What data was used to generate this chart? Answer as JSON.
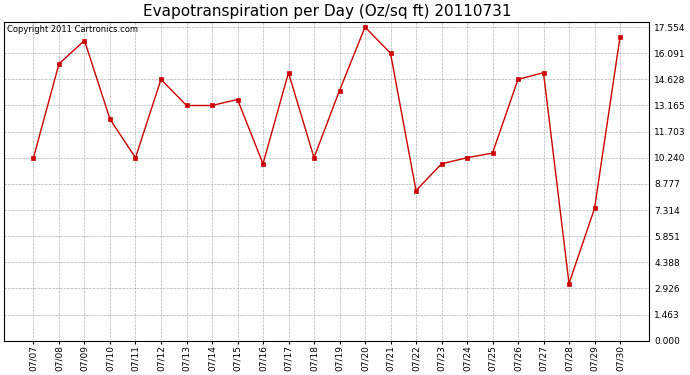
{
  "title": "Evapotranspiration per Day (Oz/sq ft) 20110731",
  "copyright": "Copyright 2011 Cartronics.com",
  "dates": [
    "07/07",
    "07/08",
    "07/09",
    "07/10",
    "07/11",
    "07/12",
    "07/13",
    "07/14",
    "07/15",
    "07/16",
    "07/17",
    "07/18",
    "07/19",
    "07/20",
    "07/21",
    "07/22",
    "07/23",
    "07/24",
    "07/25",
    "07/26",
    "07/27",
    "07/28",
    "07/29",
    "07/30"
  ],
  "values": [
    10.24,
    15.5,
    16.8,
    12.4,
    10.24,
    14.628,
    13.165,
    13.165,
    13.5,
    9.9,
    15.0,
    10.24,
    14.0,
    17.554,
    16.091,
    8.4,
    9.9,
    10.24,
    10.5,
    14.628,
    15.0,
    3.2,
    7.4,
    17.0
  ],
  "line_color": "#cc0000",
  "marker": "s",
  "marker_size": 2.5,
  "bg_color": "#ffffff",
  "grid_color": "#aaaaaa",
  "yticks": [
    0.0,
    1.463,
    2.926,
    4.388,
    5.851,
    7.314,
    8.777,
    10.24,
    11.703,
    13.165,
    14.628,
    16.091,
    17.554
  ],
  "ylim_min": 0.0,
  "ylim_max": 17.554,
  "title_fontsize": 11,
  "copyright_fontsize": 6,
  "tick_fontsize": 6.5,
  "linewidth": 1.0
}
